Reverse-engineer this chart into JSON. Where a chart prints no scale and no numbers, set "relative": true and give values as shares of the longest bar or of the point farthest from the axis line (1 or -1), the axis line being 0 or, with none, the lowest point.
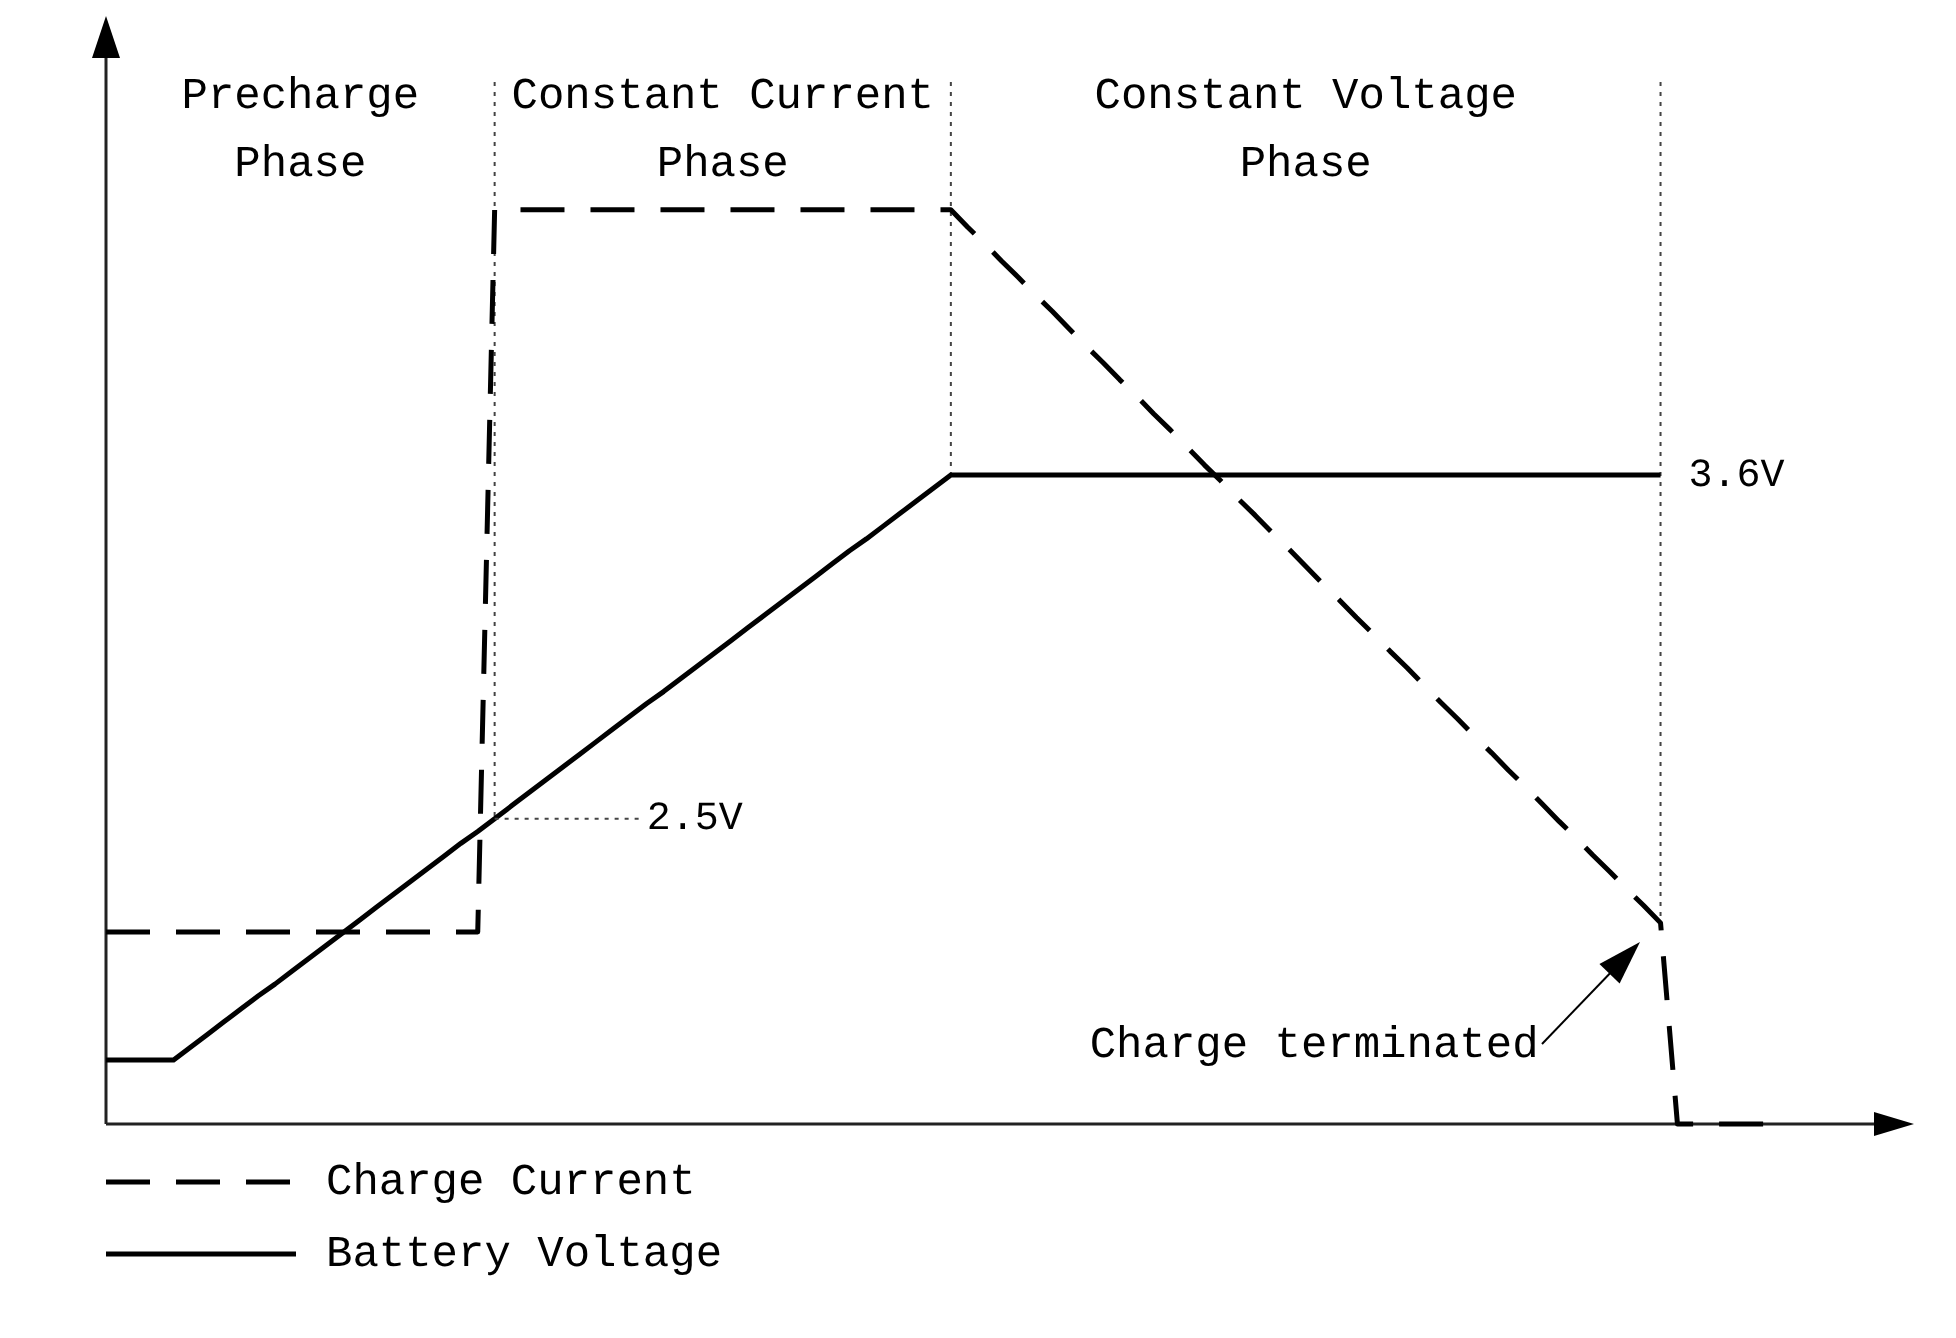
{
  "chart_data": {
    "type": "line",
    "relative": true,
    "legend": "bottom left",
    "categories": [
      null,
      null,
      null,
      null,
      null,
      null,
      null,
      null,
      null,
      null,
      null,
      null,
      null,
      null,
      null,
      null,
      null,
      null,
      null,
      null,
      null,
      null,
      null,
      null,
      null,
      null,
      null,
      null,
      null,
      null,
      null,
      null,
      null,
      null,
      null,
      null,
      null,
      null,
      null,
      null,
      null,
      null,
      null,
      null,
      null,
      null,
      null,
      null,
      null,
      null,
      null,
      null,
      null,
      null,
      null,
      null,
      null,
      null,
      null,
      null,
      null,
      null,
      null,
      null,
      null,
      null,
      null,
      null,
      null,
      null,
      null,
      null,
      null,
      null,
      null,
      null,
      null,
      null,
      null,
      null,
      null,
      null,
      null,
      null,
      null,
      null,
      null,
      null,
      null,
      null,
      null,
      null,
      null,
      null,
      null,
      null,
      null,
      null,
      null,
      null,
      null,
      null,
      null,
      null,
      null,
      null,
      null,
      null
    ],
    "series": [
      {
        "name": "Charge Current",
        "color": "#000000",
        "line_style": "dashed",
        "values": [
          0.21,
          0.21,
          0.21,
          0.21,
          0.21,
          0.21,
          0.21,
          0.21,
          0.21,
          0.21,
          0.21,
          0.21,
          0.21,
          0.21,
          0.21,
          0.21,
          0.21,
          0.21,
          0.21,
          0.21,
          0.21,
          0.21,
          0.21,
          1,
          1,
          1,
          1,
          1,
          1,
          1,
          1,
          1,
          1,
          1,
          1,
          1,
          1,
          1,
          1,
          1,
          1,
          1,
          1,
          1,
          1,
          1,
          1,
          1,
          1,
          1,
          1,
          0.981,
          0.963,
          0.944,
          0.926,
          0.907,
          0.889,
          0.87,
          0.851,
          0.833,
          0.814,
          0.796,
          0.777,
          0.759,
          0.74,
          0.721,
          0.703,
          0.684,
          0.666,
          0.647,
          0.629,
          0.61,
          0.591,
          0.573,
          0.554,
          0.536,
          0.517,
          0.499,
          0.48,
          0.461,
          0.443,
          0.424,
          0.406,
          0.387,
          0.369,
          0.35,
          0.331,
          0.313,
          0.294,
          0.276,
          0.257,
          0.239,
          0.22,
          0,
          0,
          0,
          0,
          0,
          0,
          0,
          null,
          null,
          null,
          null,
          null,
          null,
          null,
          null
        ]
      },
      {
        "name": "Battery Voltage",
        "color": "#000000",
        "line_style": "solid",
        "values": [
          0.07,
          0.07,
          0.07,
          0.07,
          0.07,
          0.084,
          0.098,
          0.112,
          0.126,
          0.14,
          0.153,
          0.167,
          0.181,
          0.195,
          0.209,
          0.223,
          0.237,
          0.251,
          0.265,
          0.279,
          0.293,
          0.307,
          0.32,
          0.334,
          0.348,
          0.362,
          0.376,
          0.39,
          0.404,
          0.418,
          0.432,
          0.446,
          0.46,
          0.473,
          0.487,
          0.501,
          0.515,
          0.529,
          0.543,
          0.557,
          0.571,
          0.585,
          0.599,
          0.613,
          0.627,
          0.64,
          0.654,
          0.668,
          0.682,
          0.696,
          0.71,
          0.71,
          0.71,
          0.71,
          0.71,
          0.71,
          0.71,
          0.71,
          0.71,
          0.71,
          0.71,
          0.71,
          0.71,
          0.71,
          0.71,
          0.71,
          0.71,
          0.71,
          0.71,
          0.71,
          0.71,
          0.71,
          0.71,
          0.71,
          0.71,
          0.71,
          0.71,
          0.71,
          0.71,
          0.71,
          0.71,
          0.71,
          0.71,
          0.71,
          0.71,
          0.71,
          0.71,
          0.71,
          0.71,
          0.71,
          0.71,
          0.71,
          0.71,
          null,
          null,
          null,
          null,
          null,
          null,
          null,
          null,
          null,
          null,
          null,
          null,
          null,
          null,
          null
        ]
      }
    ],
    "annotations": [
      "Precharge\nPhase",
      "Constant Current\nPhase",
      "Constant Voltage\nPhase",
      "2.5V",
      "3.6V",
      "Charge terminated"
    ]
  }
}
